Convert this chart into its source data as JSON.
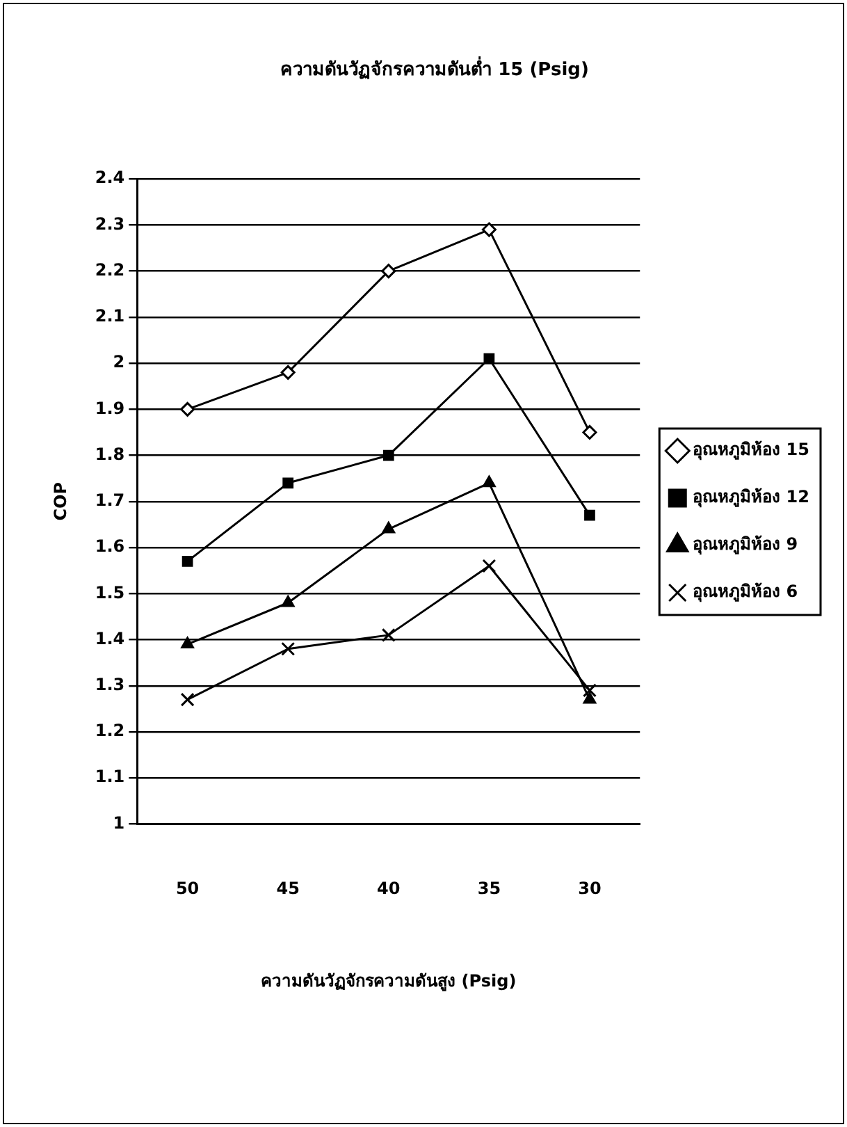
{
  "chart_data": {
    "type": "line",
    "title": "ความดันวัฏจักรความดันต่ำ 15 (Psig)",
    "xlabel": "ความดันวัฏจักรความดันสูง (Psig)",
    "ylabel": "COP",
    "categories": [
      "50",
      "45",
      "40",
      "35",
      "30"
    ],
    "series": [
      {
        "name": "อุณหภูมิห้อง 15",
        "color": "#000000",
        "marker": "diamond",
        "values": [
          1.9,
          1.98,
          2.2,
          2.29,
          1.85
        ]
      },
      {
        "name": "อุณหภูมิห้อง 12",
        "color": "#000000",
        "marker": "square",
        "values": [
          1.57,
          1.74,
          1.8,
          2.01,
          1.67
        ]
      },
      {
        "name": "อุณหภูมิห้อง 9",
        "color": "#000000",
        "marker": "triangle",
        "values": [
          1.39,
          1.48,
          1.64,
          1.74,
          1.27
        ]
      },
      {
        "name": "อุณหภูมิห้อง 6",
        "color": "#000000",
        "marker": "cross",
        "values": [
          1.27,
          1.38,
          1.41,
          1.56,
          1.29
        ]
      }
    ],
    "ylim": [
      1,
      2.4
    ],
    "yticks": [
      1,
      1.1,
      1.2,
      1.3,
      1.4,
      1.5,
      1.6,
      1.7,
      1.8,
      1.9,
      2,
      2.1,
      2.2,
      2.3,
      2.4
    ],
    "grid": "y",
    "legend": "right",
    "line_style": "solid"
  }
}
